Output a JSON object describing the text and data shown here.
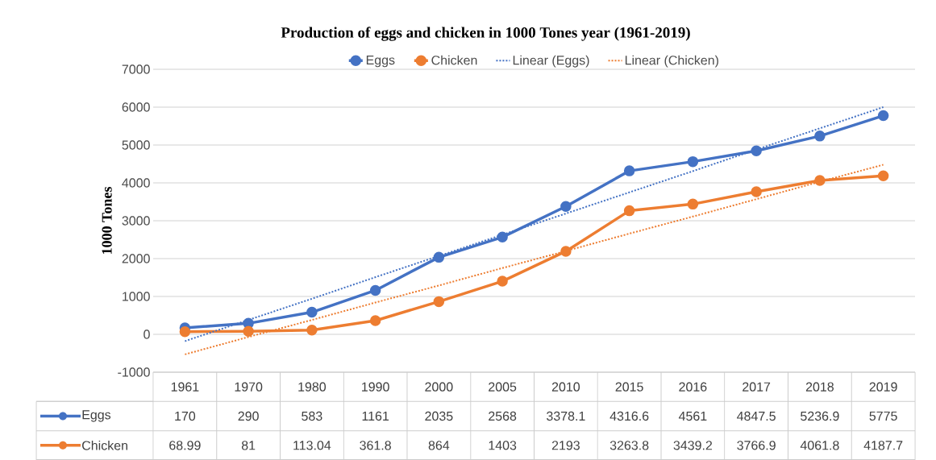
{
  "chart_data": {
    "type": "line",
    "title": "Production of eggs and chicken in 1000 Tones year (1961-2019)",
    "ylabel": "1000 Tones",
    "categories": [
      "1961",
      "1970",
      "1980",
      "1990",
      "2000",
      "2005",
      "2010",
      "2015",
      "2016",
      "2017",
      "2018",
      "2019"
    ],
    "series": [
      {
        "name": "Eggs",
        "color": "#4472c4",
        "marker": "circle",
        "line_style": "solid",
        "values": [
          170,
          290,
          583,
          1161,
          2035,
          2568,
          3378.1,
          4316.6,
          4561,
          4847.5,
          5236.9,
          5775
        ],
        "value_labels": [
          "170",
          "290",
          "583",
          "1161",
          "2035",
          "2568",
          "3378.1",
          "4316.6",
          "4561",
          "4847.5",
          "5236.9",
          "5775"
        ]
      },
      {
        "name": "Chicken",
        "color": "#ed7d31",
        "marker": "circle",
        "line_style": "solid",
        "values": [
          68.99,
          81,
          113.04,
          361.8,
          864,
          1403,
          2193,
          3263.8,
          3439.2,
          3766.9,
          4061.8,
          4187.7
        ],
        "value_labels": [
          "68.99",
          "81",
          "113.04",
          "361.8",
          "864",
          "1403",
          "2193",
          "3263.8",
          "3439.2",
          "3766.9",
          "4061.8",
          "4187.7"
        ]
      },
      {
        "name": "Linear (Eggs)",
        "type": "line",
        "color": "#4472c4",
        "marker": "none",
        "line_style": "dotted",
        "values": [
          -180,
          380,
          940,
          1510,
          2070,
          2630,
          3190,
          3750,
          4310,
          4880,
          5440,
          6000
        ]
      },
      {
        "name": "Linear (Chicken)",
        "type": "line",
        "color": "#ed7d31",
        "marker": "none",
        "line_style": "dotted",
        "values": [
          -530,
          -70,
          380,
          840,
          1290,
          1750,
          2200,
          2660,
          3110,
          3570,
          4030,
          4480
        ]
      }
    ],
    "ylim": [
      -1000,
      7000
    ],
    "yticks": [
      -1000,
      0,
      1000,
      2000,
      3000,
      4000,
      5000,
      6000,
      7000
    ],
    "grid": "y",
    "legend": "top"
  }
}
